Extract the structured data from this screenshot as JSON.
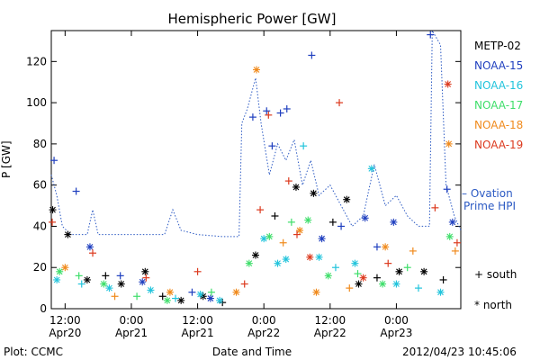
{
  "chart_data": {
    "type": "scatter",
    "title": "Hemispheric Power [GW]",
    "xlabel": "Date and Time",
    "ylabel": "P [GW]",
    "ylim": [
      0,
      135
    ],
    "xlim": [
      "2012-04-20T09:30",
      "2012-04-23T11:40"
    ],
    "y_ticks": [
      0,
      20,
      40,
      60,
      80,
      100,
      120
    ],
    "x_ticks": [
      {
        "t": "2012-04-20T12:00",
        "time": "12:00",
        "date": "Apr20"
      },
      {
        "t": "2012-04-21T00:00",
        "time": "0:00",
        "date": "Apr21"
      },
      {
        "t": "2012-04-21T12:00",
        "time": "12:00",
        "date": "Apr21"
      },
      {
        "t": "2012-04-22T00:00",
        "time": "0:00",
        "date": "Apr22"
      },
      {
        "t": "2012-04-22T12:00",
        "time": "12:00",
        "date": "Apr22"
      },
      {
        "t": "2012-04-23T00:00",
        "time": "0:00",
        "date": "Apr23"
      }
    ],
    "grid": false,
    "legend_placement": "right",
    "marker_key": {
      "south": "+ south",
      "north": "* north"
    },
    "series": [
      {
        "name": "METP-02",
        "color": "#000000",
        "points": [
          {
            "t": "2012-04-20T09:45",
            "y": 48,
            "m": "north"
          },
          {
            "t": "2012-04-20T12:30",
            "y": 36,
            "m": "north"
          },
          {
            "t": "2012-04-20T16:00",
            "y": 14,
            "m": "north"
          },
          {
            "t": "2012-04-20T19:20",
            "y": 16,
            "m": "south"
          },
          {
            "t": "2012-04-20T22:10",
            "y": 12,
            "m": "north"
          },
          {
            "t": "2012-04-21T02:30",
            "y": 18,
            "m": "north"
          },
          {
            "t": "2012-04-21T05:40",
            "y": 6,
            "m": "south"
          },
          {
            "t": "2012-04-21T09:00",
            "y": 4,
            "m": "north"
          },
          {
            "t": "2012-04-21T13:00",
            "y": 6,
            "m": "north"
          },
          {
            "t": "2012-04-21T16:30",
            "y": 3,
            "m": "south"
          },
          {
            "t": "2012-04-21T22:30",
            "y": 26,
            "m": "north"
          },
          {
            "t": "2012-04-22T02:00",
            "y": 45,
            "m": "south"
          },
          {
            "t": "2012-04-22T05:50",
            "y": 59,
            "m": "north"
          },
          {
            "t": "2012-04-22T09:00",
            "y": 56,
            "m": "north"
          },
          {
            "t": "2012-04-22T12:30",
            "y": 42,
            "m": "south"
          },
          {
            "t": "2012-04-22T15:00",
            "y": 53,
            "m": "north"
          },
          {
            "t": "2012-04-22T17:10",
            "y": 12,
            "m": "north"
          },
          {
            "t": "2012-04-22T20:30",
            "y": 15,
            "m": "south"
          },
          {
            "t": "2012-04-23T00:30",
            "y": 18,
            "m": "north"
          },
          {
            "t": "2012-04-23T05:00",
            "y": 18,
            "m": "north"
          },
          {
            "t": "2012-04-23T08:30",
            "y": 14,
            "m": "south"
          }
        ]
      },
      {
        "name": "NOAA-15",
        "color": "#1f3fbf",
        "points": [
          {
            "t": "2012-04-20T10:00",
            "y": 72,
            "m": "south"
          },
          {
            "t": "2012-04-20T14:00",
            "y": 57,
            "m": "south"
          },
          {
            "t": "2012-04-20T16:30",
            "y": 30,
            "m": "north"
          },
          {
            "t": "2012-04-20T22:00",
            "y": 16,
            "m": "south"
          },
          {
            "t": "2012-04-21T02:00",
            "y": 13,
            "m": "north"
          },
          {
            "t": "2012-04-21T11:00",
            "y": 8,
            "m": "south"
          },
          {
            "t": "2012-04-21T14:20",
            "y": 5,
            "m": "north"
          },
          {
            "t": "2012-04-21T22:00",
            "y": 93,
            "m": "south"
          },
          {
            "t": "2012-04-22T00:30",
            "y": 96,
            "m": "south"
          },
          {
            "t": "2012-04-22T01:30",
            "y": 79,
            "m": "south"
          },
          {
            "t": "2012-04-22T03:00",
            "y": 95,
            "m": "south"
          },
          {
            "t": "2012-04-22T04:10",
            "y": 97,
            "m": "south"
          },
          {
            "t": "2012-04-22T08:40",
            "y": 123,
            "m": "south"
          },
          {
            "t": "2012-04-22T10:30",
            "y": 34,
            "m": "north"
          },
          {
            "t": "2012-04-22T14:00",
            "y": 40,
            "m": "south"
          },
          {
            "t": "2012-04-22T18:20",
            "y": 44,
            "m": "north"
          },
          {
            "t": "2012-04-22T20:30",
            "y": 30,
            "m": "south"
          },
          {
            "t": "2012-04-22T23:30",
            "y": 42,
            "m": "north"
          },
          {
            "t": "2012-04-23T06:10",
            "y": 133,
            "m": "south"
          },
          {
            "t": "2012-04-23T09:10",
            "y": 58,
            "m": "south"
          },
          {
            "t": "2012-04-23T10:10",
            "y": 42,
            "m": "north"
          }
        ]
      },
      {
        "name": "NOAA-16",
        "color": "#22c4dc",
        "points": [
          {
            "t": "2012-04-20T10:30",
            "y": 14,
            "m": "north"
          },
          {
            "t": "2012-04-20T15:00",
            "y": 12,
            "m": "south"
          },
          {
            "t": "2012-04-20T20:00",
            "y": 10,
            "m": "north"
          },
          {
            "t": "2012-04-21T03:30",
            "y": 9,
            "m": "north"
          },
          {
            "t": "2012-04-21T08:00",
            "y": 5,
            "m": "south"
          },
          {
            "t": "2012-04-21T12:30",
            "y": 7,
            "m": "north"
          },
          {
            "t": "2012-04-21T16:00",
            "y": 4,
            "m": "north"
          },
          {
            "t": "2012-04-22T00:00",
            "y": 34,
            "m": "north"
          },
          {
            "t": "2012-04-22T02:30",
            "y": 22,
            "m": "north"
          },
          {
            "t": "2012-04-22T04:00",
            "y": 24,
            "m": "north"
          },
          {
            "t": "2012-04-22T07:10",
            "y": 79,
            "m": "south"
          },
          {
            "t": "2012-04-22T10:00",
            "y": 25,
            "m": "north"
          },
          {
            "t": "2012-04-22T13:00",
            "y": 20,
            "m": "south"
          },
          {
            "t": "2012-04-22T16:30",
            "y": 22,
            "m": "north"
          },
          {
            "t": "2012-04-22T19:30",
            "y": 68,
            "m": "north"
          },
          {
            "t": "2012-04-23T00:00",
            "y": 12,
            "m": "north"
          },
          {
            "t": "2012-04-23T04:00",
            "y": 10,
            "m": "south"
          },
          {
            "t": "2012-04-23T08:00",
            "y": 8,
            "m": "north"
          }
        ]
      },
      {
        "name": "NOAA-17",
        "color": "#3ede6a",
        "points": [
          {
            "t": "2012-04-20T11:00",
            "y": 18,
            "m": "north"
          },
          {
            "t": "2012-04-20T14:30",
            "y": 16,
            "m": "south"
          },
          {
            "t": "2012-04-20T19:00",
            "y": 12,
            "m": "north"
          },
          {
            "t": "2012-04-21T01:00",
            "y": 6,
            "m": "south"
          },
          {
            "t": "2012-04-21T06:30",
            "y": 4,
            "m": "north"
          },
          {
            "t": "2012-04-21T14:30",
            "y": 8,
            "m": "south"
          },
          {
            "t": "2012-04-21T21:20",
            "y": 22,
            "m": "north"
          },
          {
            "t": "2012-04-22T01:00",
            "y": 35,
            "m": "north"
          },
          {
            "t": "2012-04-22T05:00",
            "y": 42,
            "m": "south"
          },
          {
            "t": "2012-04-22T08:00",
            "y": 43,
            "m": "north"
          },
          {
            "t": "2012-04-22T11:40",
            "y": 16,
            "m": "north"
          },
          {
            "t": "2012-04-22T17:00",
            "y": 17,
            "m": "south"
          },
          {
            "t": "2012-04-22T21:30",
            "y": 12,
            "m": "north"
          },
          {
            "t": "2012-04-23T02:00",
            "y": 20,
            "m": "south"
          },
          {
            "t": "2012-04-23T09:40",
            "y": 35,
            "m": "north"
          }
        ]
      },
      {
        "name": "NOAA-18",
        "color": "#f08a1c",
        "points": [
          {
            "t": "2012-04-20T12:00",
            "y": 20,
            "m": "north"
          },
          {
            "t": "2012-04-20T21:00",
            "y": 6,
            "m": "south"
          },
          {
            "t": "2012-04-21T07:00",
            "y": 8,
            "m": "north"
          },
          {
            "t": "2012-04-21T19:00",
            "y": 8,
            "m": "north"
          },
          {
            "t": "2012-04-21T22:40",
            "y": 116,
            "m": "north"
          },
          {
            "t": "2012-04-22T03:30",
            "y": 32,
            "m": "south"
          },
          {
            "t": "2012-04-22T06:30",
            "y": 38,
            "m": "north"
          },
          {
            "t": "2012-04-22T09:30",
            "y": 8,
            "m": "north"
          },
          {
            "t": "2012-04-22T15:30",
            "y": 10,
            "m": "south"
          },
          {
            "t": "2012-04-22T22:00",
            "y": 30,
            "m": "north"
          },
          {
            "t": "2012-04-23T03:00",
            "y": 28,
            "m": "south"
          },
          {
            "t": "2012-04-23T09:30",
            "y": 80,
            "m": "north"
          },
          {
            "t": "2012-04-23T10:40",
            "y": 28,
            "m": "south"
          }
        ]
      },
      {
        "name": "NOAA-19",
        "color": "#dc3a1e",
        "points": [
          {
            "t": "2012-04-20T09:40",
            "y": 42,
            "m": "south"
          },
          {
            "t": "2012-04-20T17:00",
            "y": 27,
            "m": "south"
          },
          {
            "t": "2012-04-21T02:40",
            "y": 15,
            "m": "south"
          },
          {
            "t": "2012-04-21T12:00",
            "y": 18,
            "m": "south"
          },
          {
            "t": "2012-04-21T20:30",
            "y": 12,
            "m": "south"
          },
          {
            "t": "2012-04-21T23:20",
            "y": 48,
            "m": "south"
          },
          {
            "t": "2012-04-22T00:50",
            "y": 94,
            "m": "south"
          },
          {
            "t": "2012-04-22T04:30",
            "y": 62,
            "m": "south"
          },
          {
            "t": "2012-04-22T06:00",
            "y": 36,
            "m": "south"
          },
          {
            "t": "2012-04-22T08:20",
            "y": 25,
            "m": "north"
          },
          {
            "t": "2012-04-22T13:40",
            "y": 100,
            "m": "south"
          },
          {
            "t": "2012-04-22T18:00",
            "y": 15,
            "m": "north"
          },
          {
            "t": "2012-04-22T22:30",
            "y": 22,
            "m": "south"
          },
          {
            "t": "2012-04-23T07:00",
            "y": 49,
            "m": "south"
          },
          {
            "t": "2012-04-23T09:20",
            "y": 109,
            "m": "north"
          },
          {
            "t": "2012-04-23T11:00",
            "y": 32,
            "m": "south"
          }
        ]
      }
    ],
    "reference_line": {
      "name": "Ovation Prime HPI",
      "label": "– Ovation Prime HPI",
      "line1": "– Ovation",
      "line2": "Prime HPI",
      "color": "#2b59c3",
      "style": "dotted",
      "points": [
        {
          "t": "2012-04-20T09:30",
          "y": 65
        },
        {
          "t": "2012-04-20T10:30",
          "y": 55
        },
        {
          "t": "2012-04-20T11:30",
          "y": 40
        },
        {
          "t": "2012-04-20T13:00",
          "y": 36
        },
        {
          "t": "2012-04-20T16:00",
          "y": 36
        },
        {
          "t": "2012-04-20T17:00",
          "y": 48
        },
        {
          "t": "2012-04-20T18:00",
          "y": 36
        },
        {
          "t": "2012-04-21T00:00",
          "y": 36
        },
        {
          "t": "2012-04-21T06:00",
          "y": 36
        },
        {
          "t": "2012-04-21T07:30",
          "y": 48
        },
        {
          "t": "2012-04-21T09:00",
          "y": 38
        },
        {
          "t": "2012-04-21T12:00",
          "y": 36
        },
        {
          "t": "2012-04-21T16:30",
          "y": 35
        },
        {
          "t": "2012-04-21T19:30",
          "y": 35
        },
        {
          "t": "2012-04-21T20:00",
          "y": 90
        },
        {
          "t": "2012-04-21T21:00",
          "y": 97
        },
        {
          "t": "2012-04-21T22:30",
          "y": 112
        },
        {
          "t": "2012-04-21T23:30",
          "y": 90
        },
        {
          "t": "2012-04-22T01:00",
          "y": 65
        },
        {
          "t": "2012-04-22T02:30",
          "y": 80
        },
        {
          "t": "2012-04-22T04:00",
          "y": 72
        },
        {
          "t": "2012-04-22T05:30",
          "y": 82
        },
        {
          "t": "2012-04-22T07:00",
          "y": 60
        },
        {
          "t": "2012-04-22T08:30",
          "y": 72
        },
        {
          "t": "2012-04-22T10:00",
          "y": 55
        },
        {
          "t": "2012-04-22T12:00",
          "y": 60
        },
        {
          "t": "2012-04-22T14:00",
          "y": 50
        },
        {
          "t": "2012-04-22T16:00",
          "y": 40
        },
        {
          "t": "2012-04-22T18:00",
          "y": 45
        },
        {
          "t": "2012-04-22T20:00",
          "y": 70
        },
        {
          "t": "2012-04-22T22:00",
          "y": 50
        },
        {
          "t": "2012-04-23T00:00",
          "y": 55
        },
        {
          "t": "2012-04-23T02:00",
          "y": 45
        },
        {
          "t": "2012-04-23T04:00",
          "y": 40
        },
        {
          "t": "2012-04-23T06:00",
          "y": 40
        },
        {
          "t": "2012-04-23T06:30",
          "y": 135
        },
        {
          "t": "2012-04-23T08:00",
          "y": 128
        },
        {
          "t": "2012-04-23T09:00",
          "y": 60
        },
        {
          "t": "2012-04-23T10:30",
          "y": 45
        },
        {
          "t": "2012-04-23T11:40",
          "y": 38
        }
      ]
    }
  },
  "footer": {
    "plot_credit": "Plot: CCMC",
    "xlabel": "Date and Time",
    "timestamp": "2012/04/23 10:45:06"
  }
}
